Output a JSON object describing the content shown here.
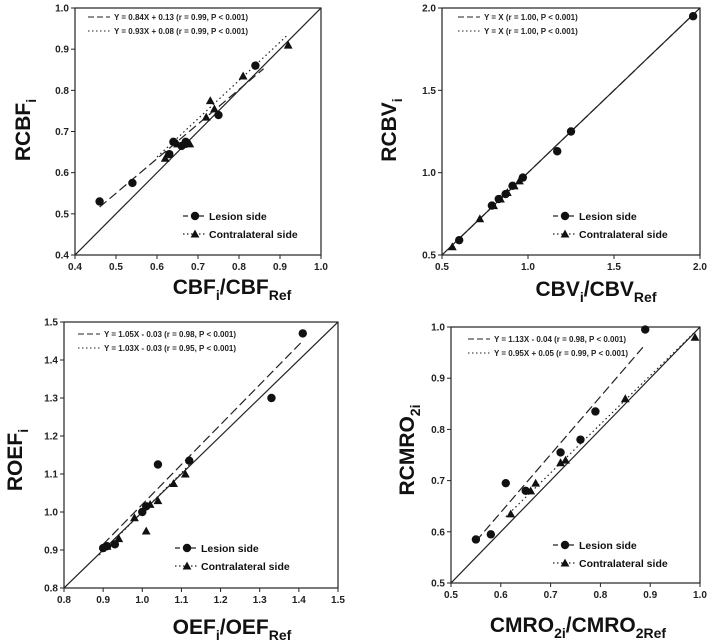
{
  "chart_data": [
    {
      "id": "rcbf",
      "type": "scatter",
      "xlabel": {
        "main": "CBF",
        "sub1": "i",
        "mid": "/CBF",
        "sub2": "Ref"
      },
      "ylabel": {
        "main": "RCBF",
        "sub": "i"
      },
      "xlim": [
        0.4,
        1.0
      ],
      "ylim": [
        0.4,
        1.0
      ],
      "xticks": [
        "0.4",
        "0.5",
        "0.6",
        "0.7",
        "0.8",
        "0.9",
        "1.0"
      ],
      "yticks": [
        "0.4",
        "0.5",
        "0.6",
        "0.7",
        "0.8",
        "0.9",
        "1.0"
      ],
      "identity_line": true,
      "fits": [
        {
          "label": "Y = 0.84X + 0.13 (r = 0.99, P < 0.001)",
          "style": "dashed",
          "slope": 0.84,
          "intercept": 0.13,
          "x_range": [
            0.46,
            0.86
          ]
        },
        {
          "label": "Y = 0.93X + 0.08 (r = 0.99, P < 0.001)",
          "style": "dotted",
          "slope": 0.93,
          "intercept": 0.08,
          "x_range": [
            0.6,
            0.92
          ]
        }
      ],
      "legend": {
        "lesion": "Lesion side",
        "contra": "Contralateral side"
      },
      "series": [
        {
          "name": "Lesion side",
          "marker": "circle",
          "points": [
            [
              0.46,
              0.53
            ],
            [
              0.54,
              0.575
            ],
            [
              0.63,
              0.645
            ],
            [
              0.64,
              0.675
            ],
            [
              0.66,
              0.665
            ],
            [
              0.67,
              0.675
            ],
            [
              0.67,
              0.67
            ],
            [
              0.75,
              0.74
            ],
            [
              0.84,
              0.86
            ]
          ]
        },
        {
          "name": "Contralateral side",
          "marker": "triangle",
          "points": [
            [
              0.62,
              0.635
            ],
            [
              0.65,
              0.67
            ],
            [
              0.68,
              0.67
            ],
            [
              0.72,
              0.735
            ],
            [
              0.73,
              0.775
            ],
            [
              0.74,
              0.755
            ],
            [
              0.81,
              0.835
            ],
            [
              0.92,
              0.91
            ]
          ]
        }
      ]
    },
    {
      "id": "rcbv",
      "type": "scatter",
      "xlabel": {
        "main": "CBV",
        "sub1": "i",
        "mid": "/CBV",
        "sub2": "Ref"
      },
      "ylabel": {
        "main": "RCBV",
        "sub": "i"
      },
      "xlim": [
        0.5,
        2.0
      ],
      "ylim": [
        0.5,
        2.0
      ],
      "xticks": [
        "0.5",
        "1.0",
        "1.5",
        "2.0"
      ],
      "yticks": [
        "0.5",
        "1.0",
        "1.5",
        "2.0"
      ],
      "identity_line": true,
      "fits": [
        {
          "label": "Y = X (r = 1.00, P < 0.001)",
          "style": "dashed",
          "slope": 1.0,
          "intercept": 0.0,
          "x_range": [
            0.6,
            1.96
          ]
        },
        {
          "label": "Y = X (r = 1.00, P < 0.001)",
          "style": "dotted",
          "slope": 1.0,
          "intercept": 0.0,
          "x_range": [
            0.56,
            0.95
          ]
        }
      ],
      "legend": {
        "lesion": "Lesion side",
        "contra": "Contralateral side"
      },
      "series": [
        {
          "name": "Lesion side",
          "marker": "circle",
          "points": [
            [
              0.6,
              0.59
            ],
            [
              0.79,
              0.8
            ],
            [
              0.83,
              0.84
            ],
            [
              0.87,
              0.87
            ],
            [
              0.91,
              0.92
            ],
            [
              0.97,
              0.97
            ],
            [
              1.17,
              1.13
            ],
            [
              1.25,
              1.25
            ],
            [
              1.96,
              1.95
            ]
          ]
        },
        {
          "name": "Contralateral side",
          "marker": "triangle",
          "points": [
            [
              0.56,
              0.55
            ],
            [
              0.72,
              0.72
            ],
            [
              0.8,
              0.8
            ],
            [
              0.84,
              0.84
            ],
            [
              0.88,
              0.88
            ],
            [
              0.92,
              0.92
            ],
            [
              0.95,
              0.95
            ]
          ]
        }
      ]
    },
    {
      "id": "roef",
      "type": "scatter",
      "xlabel": {
        "main": "OEF",
        "sub1": "i",
        "mid": "/OEF",
        "sub2": "Ref"
      },
      "ylabel": {
        "main": "ROEF",
        "sub": "i"
      },
      "xlim": [
        0.8,
        1.5
      ],
      "ylim": [
        0.8,
        1.5
      ],
      "xticks": [
        "0.8",
        "0.9",
        "1.0",
        "1.1",
        "1.2",
        "1.3",
        "1.4",
        "1.5"
      ],
      "yticks": [
        "0.8",
        "0.9",
        "1.0",
        "1.1",
        "1.2",
        "1.3",
        "1.4",
        "1.5"
      ],
      "identity_line": true,
      "fits": [
        {
          "label": "Y = 1.05X - 0.03 (r = 0.98, P < 0.001)",
          "style": "dashed",
          "slope": 1.05,
          "intercept": -0.03,
          "x_range": [
            0.9,
            1.41
          ]
        },
        {
          "label": "Y = 1.03X - 0.03 (r = 0.95, P < 0.001)",
          "style": "dotted",
          "slope": 1.03,
          "intercept": -0.03,
          "x_range": [
            0.89,
            1.12
          ]
        }
      ],
      "legend": {
        "lesion": "Lesion side",
        "contra": "Contralateral side"
      },
      "series": [
        {
          "name": "Lesion side",
          "marker": "circle",
          "points": [
            [
              0.9,
              0.905
            ],
            [
              0.91,
              0.91
            ],
            [
              0.93,
              0.915
            ],
            [
              1.0,
              1.0
            ],
            [
              1.01,
              1.015
            ],
            [
              1.04,
              1.125
            ],
            [
              1.12,
              1.135
            ],
            [
              1.33,
              1.3
            ],
            [
              1.41,
              1.47
            ]
          ]
        },
        {
          "name": "Contralateral side",
          "marker": "triangle",
          "points": [
            [
              0.91,
              0.91
            ],
            [
              0.94,
              0.93
            ],
            [
              0.98,
              0.985
            ],
            [
              1.01,
              0.95
            ],
            [
              1.02,
              1.02
            ],
            [
              1.04,
              1.03
            ],
            [
              1.08,
              1.075
            ],
            [
              1.11,
              1.1
            ]
          ]
        }
      ]
    },
    {
      "id": "rcmro2",
      "type": "scatter",
      "xlabel": {
        "main": "CMRO",
        "sub1": "2i",
        "mid": "/CMRO",
        "sub2": "2Ref"
      },
      "ylabel": {
        "main": "RCMRO",
        "sub": "2i"
      },
      "xlim": [
        0.5,
        1.0
      ],
      "ylim": [
        0.5,
        1.0
      ],
      "xticks": [
        "0.5",
        "0.6",
        "0.7",
        "0.8",
        "0.9",
        "1.0"
      ],
      "yticks": [
        "0.5",
        "0.6",
        "0.7",
        "0.8",
        "0.9",
        "1.0"
      ],
      "identity_line": true,
      "fits": [
        {
          "label": "Y = 1.13X - 0.04 (r = 0.98, P < 0.001)",
          "style": "dashed",
          "slope": 1.13,
          "intercept": -0.04,
          "x_range": [
            0.55,
            0.89
          ]
        },
        {
          "label": "Y = 0.95X + 0.05 (r = 0.99, P < 0.001)",
          "style": "dotted",
          "slope": 0.95,
          "intercept": 0.05,
          "x_range": [
            0.61,
            0.99
          ]
        }
      ],
      "legend": {
        "lesion": "Lesion side",
        "contra": "Contralateral side"
      },
      "series": [
        {
          "name": "Lesion side",
          "marker": "circle",
          "points": [
            [
              0.55,
              0.585
            ],
            [
              0.58,
              0.595
            ],
            [
              0.61,
              0.695
            ],
            [
              0.65,
              0.68
            ],
            [
              0.72,
              0.755
            ],
            [
              0.76,
              0.78
            ],
            [
              0.79,
              0.835
            ],
            [
              0.89,
              0.995
            ]
          ]
        },
        {
          "name": "Contralateral side",
          "marker": "triangle",
          "points": [
            [
              0.62,
              0.635
            ],
            [
              0.66,
              0.68
            ],
            [
              0.67,
              0.695
            ],
            [
              0.72,
              0.735
            ],
            [
              0.73,
              0.74
            ],
            [
              0.85,
              0.86
            ],
            [
              0.99,
              0.98
            ]
          ]
        }
      ]
    }
  ]
}
